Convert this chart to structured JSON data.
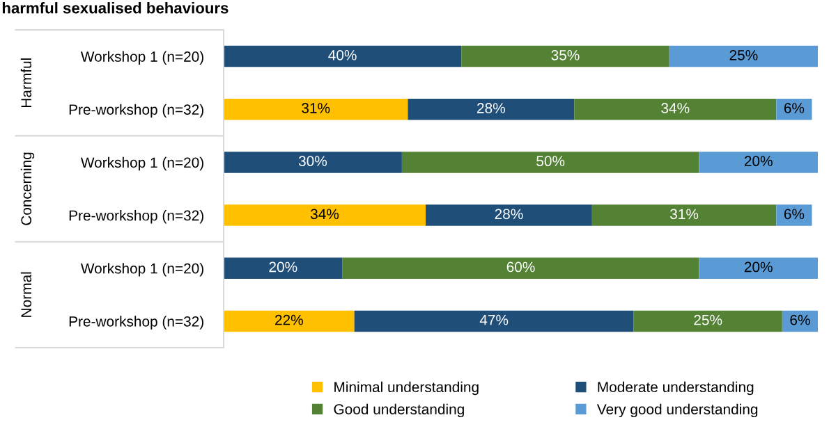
{
  "chart_data": {
    "type": "bar",
    "orientation": "horizontal",
    "stacked": true,
    "title": "harmful sexualised behaviours",
    "categories": [
      "Workshop 1 (n=20)",
      "Pre-workshop (n=32)",
      "Workshop 1 (n=20)",
      "Pre-workshop (n=32)",
      "Workshop 1 (n=20)",
      "Pre-workshop (n=32)"
    ],
    "series": [
      {
        "name": "Minimal understanding",
        "color": "#ffc000",
        "values": [
          null,
          31,
          null,
          34,
          null,
          22
        ],
        "value_labels": [
          null,
          "31%",
          null,
          "34%",
          null,
          "22%"
        ]
      },
      {
        "name": "Moderate understanding",
        "color": "#1f4e79",
        "values": [
          40,
          28,
          30,
          28,
          20,
          47
        ],
        "value_labels": [
          "40%",
          "28%",
          "30%",
          "28%",
          "20%",
          "47%"
        ]
      },
      {
        "name": "Good understanding",
        "color": "#548235",
        "values": [
          35,
          34,
          50,
          31,
          60,
          25
        ],
        "value_labels": [
          "35%",
          "34%",
          "50%",
          "31%",
          "60%",
          "25%"
        ]
      },
      {
        "name": "Very good understanding",
        "color": "#5b9bd5",
        "values": [
          25,
          6,
          20,
          6,
          20,
          6
        ],
        "value_labels": [
          "25%",
          "6%",
          "20%",
          "6%",
          "20%",
          "6%"
        ]
      }
    ],
    "annotations": [
      "Harmful",
      "Concerning",
      "Normal"
    ],
    "legend": "bottom",
    "grid": false,
    "tick_labels": "y"
  }
}
